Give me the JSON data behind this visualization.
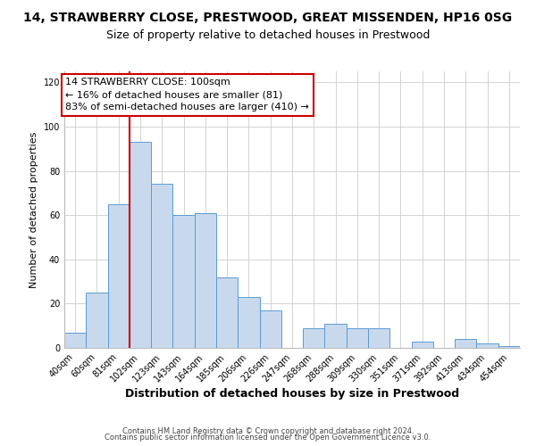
{
  "title": "14, STRAWBERRY CLOSE, PRESTWOOD, GREAT MISSENDEN, HP16 0SG",
  "subtitle": "Size of property relative to detached houses in Prestwood",
  "xlabel": "Distribution of detached houses by size in Prestwood",
  "ylabel": "Number of detached properties",
  "bar_labels": [
    "40sqm",
    "60sqm",
    "81sqm",
    "102sqm",
    "123sqm",
    "143sqm",
    "164sqm",
    "185sqm",
    "206sqm",
    "226sqm",
    "247sqm",
    "268sqm",
    "288sqm",
    "309sqm",
    "330sqm",
    "351sqm",
    "371sqm",
    "392sqm",
    "413sqm",
    "434sqm",
    "454sqm"
  ],
  "bar_values": [
    7,
    25,
    65,
    93,
    74,
    60,
    61,
    32,
    23,
    17,
    0,
    9,
    11,
    9,
    9,
    0,
    3,
    0,
    4,
    2,
    1
  ],
  "bar_color": "#c9d9ed",
  "bar_edge_color": "#5b9bd5",
  "vline_bar_index": 3,
  "vline_color": "#cc0000",
  "annotation_text": "14 STRAWBERRY CLOSE: 100sqm\n← 16% of detached houses are smaller (81)\n83% of semi-detached houses are larger (410) →",
  "annotation_box_color": "#ffffff",
  "annotation_box_edge": "#cc0000",
  "ylim": [
    0,
    125
  ],
  "yticks": [
    0,
    20,
    40,
    60,
    80,
    100,
    120
  ],
  "grid_color": "#cccccc",
  "footer_line1": "Contains HM Land Registry data © Crown copyright and database right 2024.",
  "footer_line2": "Contains public sector information licensed under the Open Government Licence v3.0.",
  "title_fontsize": 10,
  "subtitle_fontsize": 9,
  "xlabel_fontsize": 9,
  "ylabel_fontsize": 8,
  "tick_fontsize": 7,
  "annotation_fontsize": 8,
  "footer_fontsize": 6
}
